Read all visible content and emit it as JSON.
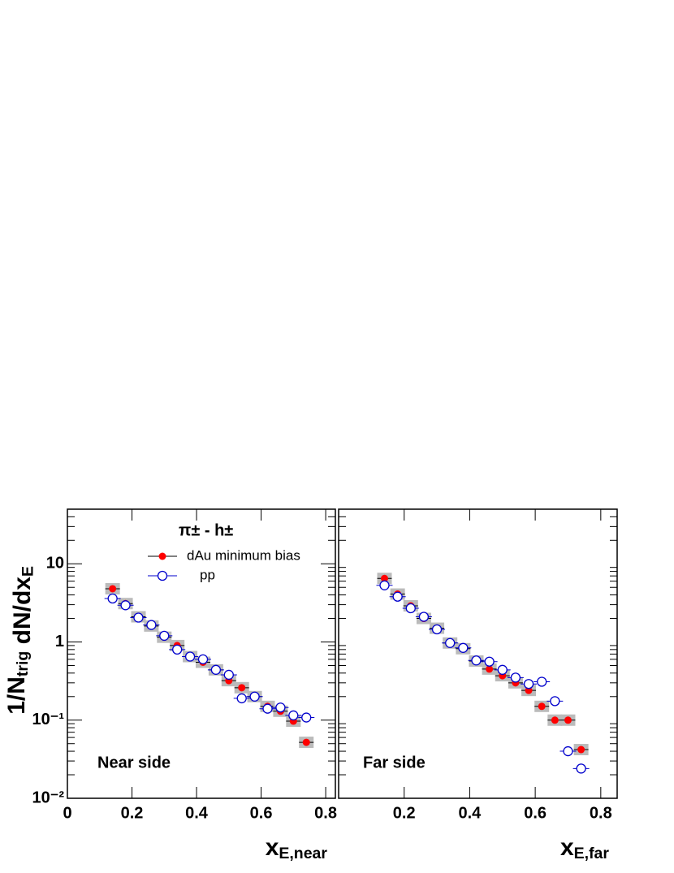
{
  "chart_data": [
    {
      "type": "scatter",
      "x_label": "x_E,near",
      "y_label": "1/N_trig dN/dx_E",
      "legend_title": "π± - h±",
      "annotation": "Near side",
      "x": [
        0.14,
        0.18,
        0.22,
        0.26,
        0.3,
        0.34,
        0.38,
        0.42,
        0.46,
        0.5,
        0.54,
        0.58,
        0.62,
        0.66,
        0.7,
        0.74
      ],
      "series": [
        {
          "name": "dAu minimum bias",
          "color": "#ff0000",
          "marker": "filled",
          "values": [
            4.8,
            3.1,
            2.1,
            1.6,
            1.15,
            0.9,
            0.65,
            0.55,
            0.44,
            0.32,
            0.26,
            0.2,
            0.15,
            0.13,
            0.097,
            0.052
          ]
        },
        {
          "name": "pp",
          "color": "#0000cc",
          "marker": "open",
          "values": [
            3.6,
            2.95,
            2.05,
            1.65,
            1.2,
            0.8,
            0.65,
            0.6,
            0.44,
            0.38,
            0.19,
            0.2,
            0.14,
            0.145,
            0.115,
            0.108
          ]
        }
      ],
      "xlim": [
        0,
        0.83
      ],
      "xticks": [
        0,
        0.2,
        0.4,
        0.6,
        0.8
      ],
      "ylim": [
        0.01,
        50
      ],
      "log_y": true,
      "yticks": [
        {
          "value": 0.01,
          "label": "10⁻²"
        },
        {
          "value": 0.1,
          "label": "10⁻¹"
        },
        1,
        10
      ]
    },
    {
      "type": "scatter",
      "x_label": "x_E,far",
      "annotation": "Far side",
      "x": [
        0.14,
        0.18,
        0.22,
        0.26,
        0.3,
        0.34,
        0.38,
        0.42,
        0.46,
        0.5,
        0.54,
        0.58,
        0.62,
        0.66,
        0.7,
        0.74
      ],
      "series": [
        {
          "color": "#ff0000",
          "marker": "filled",
          "values": [
            6.5,
            4.1,
            2.9,
            2.0,
            1.5,
            0.97,
            0.82,
            0.57,
            0.45,
            0.37,
            0.3,
            0.24,
            0.15,
            0.1,
            0.1,
            0.042
          ]
        },
        {
          "color": "#0000cc",
          "marker": "open",
          "values": [
            5.3,
            3.8,
            2.7,
            2.1,
            1.45,
            0.97,
            0.84,
            0.58,
            0.56,
            0.44,
            0.35,
            0.29,
            0.31,
            0.175,
            0.04,
            0.024
          ]
        }
      ],
      "xlim": [
        0,
        0.85
      ],
      "xticks": [
        0.2,
        0.4,
        0.6,
        0.8
      ],
      "ylim": [
        0.01,
        50
      ],
      "log_y": true
    }
  ]
}
